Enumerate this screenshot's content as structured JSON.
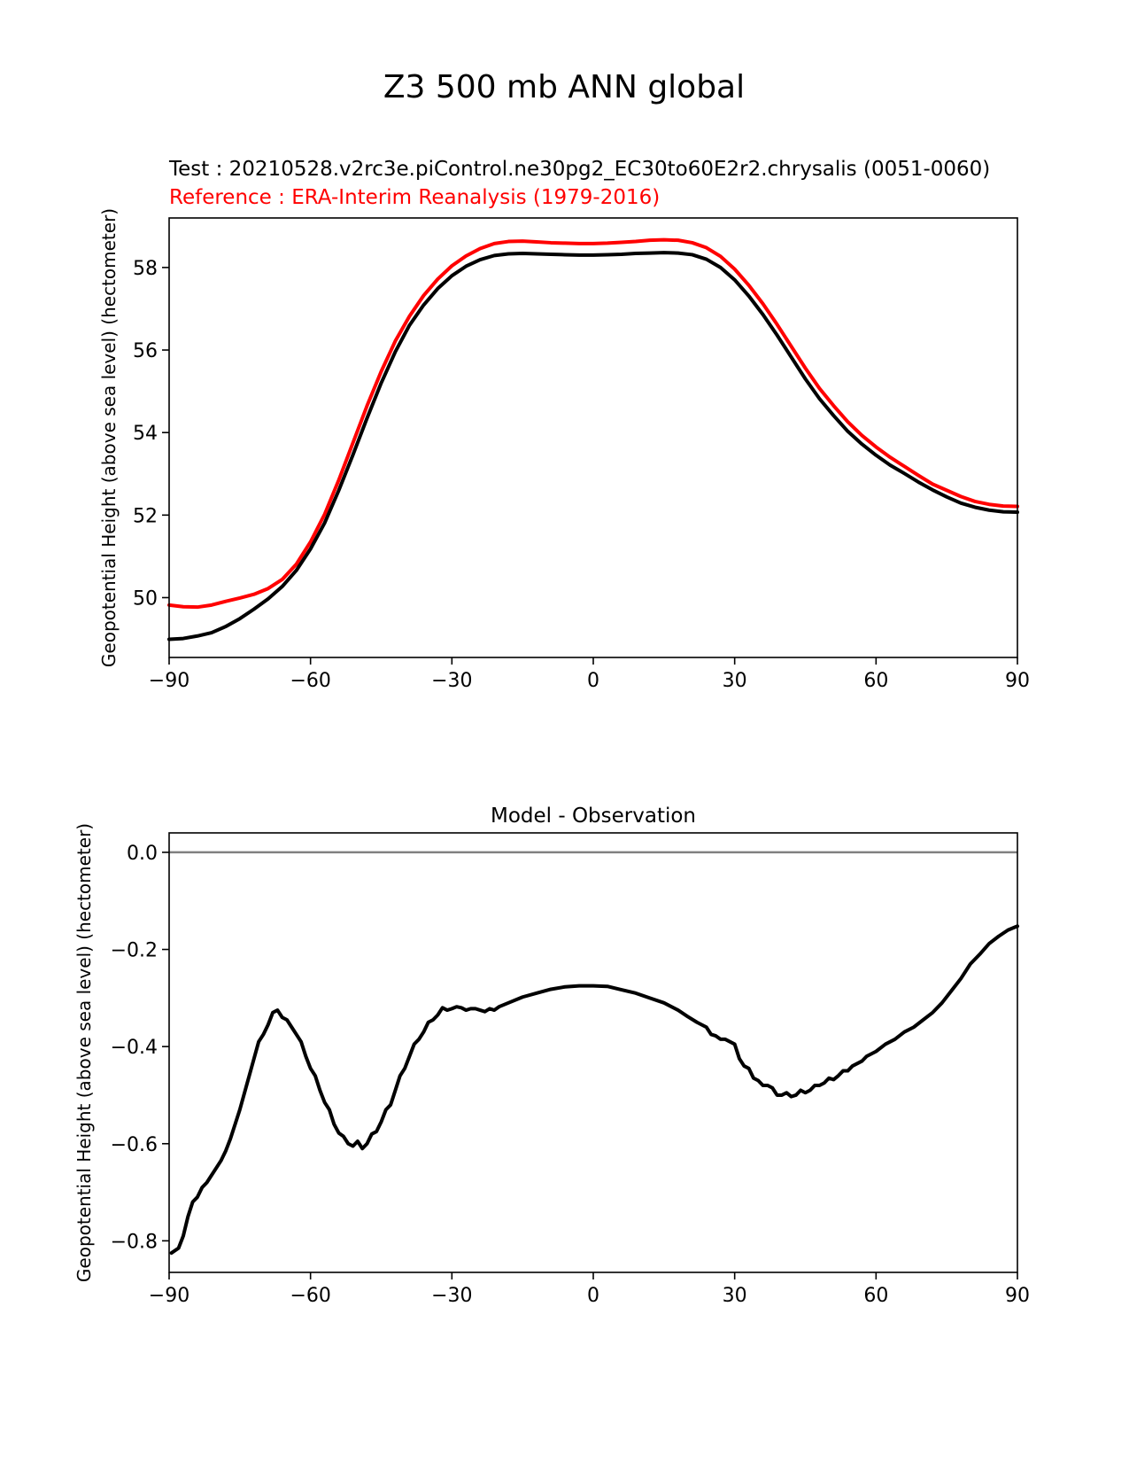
{
  "figure": {
    "suptitle": "Z3 500 mb ANN global",
    "test_label": "Test : 20210528.v2rc3e.piControl.ne30pg2_EC30to60E2r2.chrysalis (0051-0060)",
    "ref_label": "Reference : ERA-Interim Reanalysis (1979-2016)",
    "test_color": "#000000",
    "ref_color": "#ff0000",
    "zero_line_color": "#808080"
  },
  "chart_data": [
    {
      "type": "line",
      "title": "",
      "xlabel": "",
      "ylabel": "Geopotential Height (above sea level) (hectometer)",
      "xlim": [
        -90,
        90
      ],
      "ylim": [
        48.55,
        59.2
      ],
      "xticks": [
        -90,
        -60,
        -30,
        0,
        30,
        60,
        90
      ],
      "xtick_labels": [
        "−90",
        "−60",
        "−30",
        "0",
        "30",
        "60",
        "90"
      ],
      "yticks": [
        50,
        52,
        54,
        56,
        58
      ],
      "ytick_labels": [
        "50",
        "52",
        "54",
        "56",
        "58"
      ],
      "grid": false,
      "series": [
        {
          "name": "Reference : ERA-Interim Reanalysis (1979-2016)",
          "color": "#ff0000",
          "x": [
            -90,
            -87,
            -84,
            -81,
            -78,
            -75,
            -72,
            -69,
            -66,
            -63,
            -60,
            -57,
            -54,
            -51,
            -48,
            -45,
            -42,
            -39,
            -36,
            -33,
            -30,
            -27,
            -24,
            -21,
            -18,
            -15,
            -12,
            -9,
            -6,
            -3,
            0,
            3,
            6,
            9,
            12,
            15,
            18,
            21,
            24,
            27,
            30,
            33,
            36,
            39,
            42,
            45,
            48,
            51,
            54,
            57,
            60,
            63,
            66,
            69,
            72,
            75,
            78,
            81,
            84,
            87,
            90
          ],
          "y": [
            49.82,
            49.78,
            49.77,
            49.82,
            49.91,
            49.99,
            50.08,
            50.22,
            50.44,
            50.81,
            51.35,
            52.02,
            52.85,
            53.75,
            54.65,
            55.48,
            56.22,
            56.82,
            57.32,
            57.72,
            58.04,
            58.28,
            58.46,
            58.58,
            58.63,
            58.64,
            58.62,
            58.6,
            58.59,
            58.58,
            58.58,
            58.59,
            58.61,
            58.63,
            58.66,
            58.67,
            58.66,
            58.6,
            58.48,
            58.27,
            57.96,
            57.57,
            57.12,
            56.62,
            56.09,
            55.56,
            55.07,
            54.65,
            54.26,
            53.93,
            53.65,
            53.4,
            53.18,
            52.96,
            52.75,
            52.6,
            52.45,
            52.33,
            52.26,
            52.22,
            52.21
          ]
        },
        {
          "name": "Test : 20210528.v2rc3e.piControl.ne30pg2_EC30to60E2r2.chrysalis (0051-0060)",
          "color": "#000000",
          "x": [
            -90,
            -87,
            -84,
            -81,
            -78,
            -75,
            -72,
            -69,
            -66,
            -63,
            -60,
            -57,
            -54,
            -51,
            -48,
            -45,
            -42,
            -39,
            -36,
            -33,
            -30,
            -27,
            -24,
            -21,
            -18,
            -15,
            -12,
            -9,
            -6,
            -3,
            0,
            3,
            6,
            9,
            12,
            15,
            18,
            21,
            24,
            27,
            30,
            33,
            36,
            39,
            42,
            45,
            48,
            51,
            54,
            57,
            60,
            63,
            66,
            69,
            72,
            75,
            78,
            81,
            84,
            87,
            90
          ],
          "y": [
            48.99,
            49.01,
            49.07,
            49.15,
            49.3,
            49.49,
            49.72,
            49.97,
            50.27,
            50.66,
            51.18,
            51.81,
            52.6,
            53.46,
            54.35,
            55.2,
            55.96,
            56.6,
            57.09,
            57.49,
            57.8,
            58.03,
            58.19,
            58.29,
            58.33,
            58.34,
            58.33,
            58.32,
            58.31,
            58.3,
            58.3,
            58.31,
            58.32,
            58.34,
            58.35,
            58.36,
            58.35,
            58.31,
            58.2,
            58.0,
            57.7,
            57.31,
            56.86,
            56.36,
            55.83,
            55.3,
            54.82,
            54.41,
            54.03,
            53.72,
            53.45,
            53.21,
            53.01,
            52.8,
            52.61,
            52.44,
            52.29,
            52.19,
            52.12,
            52.08,
            52.07
          ]
        }
      ]
    },
    {
      "type": "line",
      "title": "Model - Observation",
      "xlabel": "",
      "ylabel": "Geopotential Height (above sea level) (hectometer)",
      "xlim": [
        -90,
        90
      ],
      "ylim": [
        -0.865,
        0.04
      ],
      "xticks": [
        -90,
        -60,
        -30,
        0,
        30,
        60,
        90
      ],
      "xtick_labels": [
        "−90",
        "−60",
        "−30",
        "0",
        "30",
        "60",
        "90"
      ],
      "yticks": [
        0.0,
        -0.2,
        -0.4,
        -0.6,
        -0.8
      ],
      "ytick_labels": [
        "0.0",
        "−0.2",
        "−0.4",
        "−0.6",
        "−0.8"
      ],
      "grid": false,
      "reference_line": 0.0,
      "series": [
        {
          "name": "",
          "color": "#000000",
          "x": [
            -89.5,
            -88,
            -87,
            -86,
            -85,
            -84,
            -83,
            -82,
            -81,
            -80,
            -79,
            -78,
            -77,
            -76,
            -75,
            -74,
            -73,
            -72,
            -71,
            -70,
            -69,
            -68,
            -67,
            -66,
            -65,
            -64,
            -63,
            -62,
            -61,
            -60,
            -59,
            -58,
            -57,
            -56,
            -55,
            -54,
            -53,
            -52,
            -51,
            -50,
            -49,
            -48,
            -47,
            -46,
            -45,
            -44,
            -43,
            -42,
            -41,
            -40,
            -39,
            -38,
            -37,
            -36,
            -35,
            -34,
            -33,
            -32,
            -31,
            -30,
            -29,
            -28,
            -27,
            -26,
            -25,
            -24,
            -23,
            -22,
            -21,
            -20,
            -18,
            -15,
            -12,
            -9,
            -6,
            -3,
            0,
            3,
            6,
            9,
            12,
            15,
            18,
            20,
            22,
            24,
            25,
            26,
            27,
            28,
            29,
            30,
            31,
            32,
            33,
            34,
            35,
            36,
            37,
            38,
            39,
            40,
            41,
            42,
            43,
            44,
            45,
            46,
            47,
            48,
            49,
            50,
            51,
            52,
            53,
            54,
            55,
            56,
            57,
            58,
            60,
            62,
            64,
            66,
            68,
            70,
            72,
            74,
            76,
            78,
            80,
            82,
            84,
            86,
            88,
            90
          ],
          "y": [
            -0.825,
            -0.815,
            -0.79,
            -0.75,
            -0.72,
            -0.71,
            -0.69,
            -0.68,
            -0.665,
            -0.65,
            -0.635,
            -0.615,
            -0.59,
            -0.56,
            -0.53,
            -0.495,
            -0.46,
            -0.425,
            -0.39,
            -0.375,
            -0.355,
            -0.33,
            -0.325,
            -0.34,
            -0.345,
            -0.36,
            -0.375,
            -0.39,
            -0.42,
            -0.445,
            -0.46,
            -0.49,
            -0.515,
            -0.53,
            -0.56,
            -0.578,
            -0.585,
            -0.6,
            -0.605,
            -0.595,
            -0.61,
            -0.6,
            -0.58,
            -0.575,
            -0.555,
            -0.53,
            -0.52,
            -0.49,
            -0.46,
            -0.445,
            -0.42,
            -0.395,
            -0.385,
            -0.37,
            -0.35,
            -0.345,
            -0.335,
            -0.32,
            -0.325,
            -0.322,
            -0.318,
            -0.32,
            -0.325,
            -0.322,
            -0.322,
            -0.325,
            -0.328,
            -0.322,
            -0.325,
            -0.318,
            -0.31,
            -0.298,
            -0.29,
            -0.282,
            -0.277,
            -0.275,
            -0.275,
            -0.276,
            -0.283,
            -0.29,
            -0.3,
            -0.31,
            -0.325,
            -0.338,
            -0.35,
            -0.36,
            -0.375,
            -0.378,
            -0.385,
            -0.385,
            -0.39,
            -0.395,
            -0.425,
            -0.44,
            -0.445,
            -0.465,
            -0.47,
            -0.48,
            -0.48,
            -0.485,
            -0.5,
            -0.5,
            -0.495,
            -0.503,
            -0.5,
            -0.49,
            -0.495,
            -0.49,
            -0.48,
            -0.48,
            -0.475,
            -0.465,
            -0.468,
            -0.46,
            -0.45,
            -0.45,
            -0.44,
            -0.435,
            -0.43,
            -0.42,
            -0.41,
            -0.395,
            -0.385,
            -0.37,
            -0.36,
            -0.345,
            -0.33,
            -0.31,
            -0.285,
            -0.26,
            -0.23,
            -0.21,
            -0.188,
            -0.173,
            -0.16,
            -0.152
          ]
        }
      ]
    }
  ]
}
